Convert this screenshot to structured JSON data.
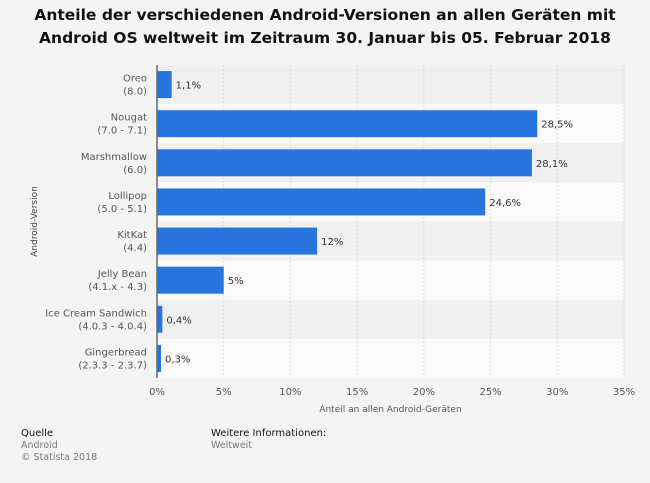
{
  "chart_data": {
    "type": "bar",
    "orientation": "horizontal",
    "title_lines": [
      "Anteile der verschiedenen Android-Versionen an allen Geräten mit",
      "Android OS weltweit im Zeitraum 30. Januar bis 05. Februar 2018"
    ],
    "categories": [
      [
        "Oreo",
        "(8.0)"
      ],
      [
        "Nougat",
        "(7.0 - 7.1)"
      ],
      [
        "Marshmallow",
        "(6.0)"
      ],
      [
        "Lollipop",
        "(5.0 - 5.1)"
      ],
      [
        "KitKat",
        "(4.4)"
      ],
      [
        "Jelly Bean",
        "(4.1.x - 4.3)"
      ],
      [
        "Ice Cream Sandwich",
        "(4.0.3 - 4.0.4)"
      ],
      [
        "Gingerbread",
        "(2.3.3 - 2.3.7)"
      ]
    ],
    "values": [
      1.1,
      28.5,
      28.1,
      24.6,
      12,
      5,
      0.4,
      0.3
    ],
    "value_labels": [
      "1,1%",
      "28,5%",
      "28,1%",
      "24,6%",
      "12%",
      "5%",
      "0,4%",
      "0,3%"
    ],
    "xlabel": "Anteil an allen Android-Geräten",
    "ylabel": "Android-Version",
    "xlim": [
      0,
      35
    ],
    "x_ticks": [
      0,
      5,
      10,
      15,
      20,
      25,
      30,
      35
    ],
    "x_tick_labels": [
      "0%",
      "5%",
      "10%",
      "15%",
      "20%",
      "25%",
      "30%",
      "35%"
    ],
    "grid": true,
    "bar_color": "#2876dd"
  },
  "footer": {
    "source_label": "Quelle",
    "source_value": "Android",
    "copyright": "© Statista 2018",
    "more_info_label": "Weitere Informationen:",
    "more_info_value": "Weltweit"
  }
}
